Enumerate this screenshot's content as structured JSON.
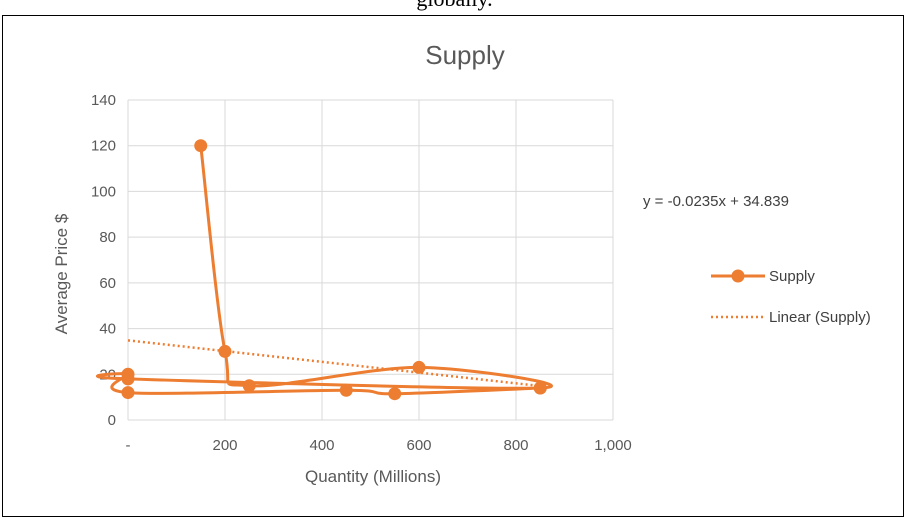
{
  "page": {
    "top_text": "globally."
  },
  "chart_data": {
    "type": "scatter",
    "title": "Supply",
    "xlabel": "Quantity (Millions)",
    "ylabel": "Average Price $",
    "xlim": [
      0,
      1000
    ],
    "ylim": [
      0,
      140
    ],
    "x_ticks": [
      0,
      200,
      400,
      600,
      800,
      1000
    ],
    "x_tick_labels": [
      "-",
      "200",
      "400",
      "600",
      "800",
      "1,000"
    ],
    "y_ticks": [
      0,
      20,
      40,
      60,
      80,
      100,
      120,
      140
    ],
    "y_tick_labels": [
      "0",
      "20",
      "40",
      "60",
      "80",
      "100",
      "120",
      "140"
    ],
    "grid": "vertical and horizontal major gridlines",
    "legend_placement": "right",
    "series": [
      {
        "name": "Supply",
        "color": "#ED7D31",
        "style": "smoothed line with circle markers",
        "points": [
          {
            "x": 150,
            "y": 120
          },
          {
            "x": 200,
            "y": 30
          },
          {
            "x": 250,
            "y": 15
          },
          {
            "x": 600,
            "y": 23
          },
          {
            "x": 850,
            "y": 14
          },
          {
            "x": 0,
            "y": 18
          },
          {
            "x": 0,
            "y": 20
          },
          {
            "x": 0,
            "y": 12
          },
          {
            "x": 450,
            "y": 13
          },
          {
            "x": 550,
            "y": 11.5
          },
          {
            "x": 850,
            "y": 14
          }
        ]
      },
      {
        "name": "Linear (Supply)",
        "color": "#ED7D31",
        "style": "dotted trendline",
        "slope": -0.0235,
        "intercept": 34.839,
        "x_range": [
          0,
          850
        ]
      }
    ],
    "equation": "y = -0.0235x + 34.839"
  }
}
